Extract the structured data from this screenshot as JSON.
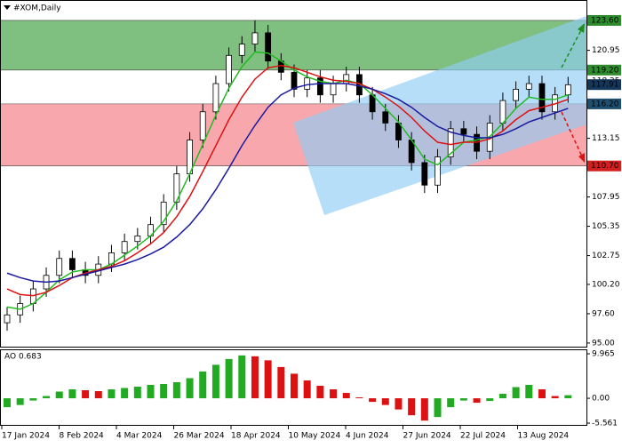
{
  "chart_data": {
    "type": "candlestick",
    "title": "#XOM,Daily",
    "xlabels": [
      "17 Jan 2024",
      "8 Feb 2024",
      "4 Mar 2024",
      "26 Mar 2024",
      "18 Apr 2024",
      "10 May 2024",
      "4 Jun 2024",
      "27 Jun 2024",
      "22 Jul 2024",
      "13 Aug 2024"
    ],
    "open": [
      96.8,
      97.5,
      98.5,
      99.8,
      101.0,
      102.5,
      101.5,
      101.0,
      102.0,
      103.0,
      104.0,
      104.5,
      105.5,
      107.5,
      110.0,
      113.0,
      115.5,
      118.0,
      120.5,
      121.5,
      122.5,
      120.0,
      119.0,
      117.5,
      118.5,
      117.0,
      118.0,
      118.8,
      117.0,
      115.5,
      114.5,
      113.0,
      111.0,
      109.0,
      111.5,
      114.0,
      113.5,
      112.0,
      114.5,
      116.5,
      117.5,
      118.0,
      115.5,
      117.0
    ],
    "high": [
      98.2,
      99.2,
      100.5,
      101.7,
      103.2,
      103.2,
      102.2,
      102.7,
      103.7,
      104.7,
      105.2,
      106.2,
      108.2,
      110.7,
      113.7,
      116.2,
      118.7,
      121.2,
      122.2,
      123.6,
      123.2,
      120.7,
      119.7,
      119.2,
      119.2,
      118.7,
      119.5,
      119.5,
      117.7,
      116.2,
      115.2,
      113.7,
      111.7,
      112.2,
      114.7,
      114.7,
      114.2,
      115.2,
      117.2,
      118.2,
      118.7,
      118.7,
      117.7,
      118.6
    ],
    "low": [
      96.1,
      96.8,
      97.8,
      99.1,
      100.3,
      100.8,
      100.3,
      100.3,
      101.3,
      102.3,
      103.3,
      103.8,
      104.8,
      106.8,
      109.3,
      112.3,
      114.8,
      117.3,
      119.8,
      120.8,
      119.3,
      118.3,
      116.8,
      116.8,
      116.3,
      116.3,
      117.3,
      116.3,
      114.8,
      113.8,
      112.3,
      110.3,
      108.3,
      108.3,
      110.8,
      112.8,
      111.3,
      111.3,
      113.8,
      115.8,
      116.8,
      114.8,
      114.8,
      116.3
    ],
    "close": [
      97.5,
      98.5,
      99.8,
      101.0,
      102.5,
      101.5,
      101.0,
      102.0,
      103.0,
      104.0,
      104.5,
      105.5,
      107.5,
      110.0,
      113.0,
      115.5,
      118.0,
      120.5,
      121.5,
      122.5,
      120.0,
      119.0,
      117.5,
      118.5,
      117.0,
      118.0,
      118.8,
      117.0,
      115.5,
      114.5,
      113.0,
      111.0,
      109.0,
      111.5,
      114.0,
      113.5,
      112.0,
      114.5,
      116.5,
      117.5,
      118.0,
      115.5,
      117.0,
      117.9
    ],
    "series": [
      {
        "color": "#22bb22",
        "values": [
          98.2,
          98.0,
          98.5,
          99.5,
          100.6,
          101.3,
          101.5,
          101.5,
          102.0,
          102.8,
          103.6,
          104.5,
          105.8,
          107.6,
          110.0,
          112.6,
          115.2,
          117.6,
          119.5,
          120.8,
          120.7,
          120.0,
          119.2,
          118.6,
          118.2,
          118.0,
          118.3,
          118.0,
          117.0,
          115.8,
          114.6,
          113.0,
          111.3,
          110.8,
          111.8,
          112.8,
          113.0,
          113.3,
          114.5,
          115.8,
          116.8,
          116.6,
          116.6,
          117.0
        ]
      },
      {
        "color": "#dd1111",
        "values": [
          99.8,
          99.3,
          99.2,
          99.5,
          100.1,
          100.8,
          101.2,
          101.5,
          101.8,
          102.3,
          103.0,
          103.8,
          104.8,
          106.2,
          108.0,
          110.2,
          112.5,
          114.8,
          116.8,
          118.4,
          119.4,
          119.6,
          119.4,
          119.0,
          118.6,
          118.3,
          118.2,
          118.0,
          117.5,
          116.8,
          116.0,
          115.0,
          113.8,
          112.8,
          112.6,
          112.8,
          112.8,
          113.1,
          113.8,
          114.8,
          115.6,
          115.9,
          116.2,
          116.6
        ]
      },
      {
        "color": "#1a1aa0",
        "values": [
          101.2,
          100.8,
          100.5,
          100.4,
          100.5,
          100.8,
          101.1,
          101.4,
          101.7,
          102.0,
          102.4,
          102.9,
          103.5,
          104.4,
          105.5,
          106.9,
          108.6,
          110.5,
          112.5,
          114.3,
          115.9,
          117.0,
          117.6,
          117.9,
          118.0,
          118.0,
          118.0,
          117.8,
          117.5,
          117.1,
          116.6,
          115.9,
          115.0,
          114.2,
          113.7,
          113.4,
          113.2,
          113.2,
          113.5,
          114.0,
          114.6,
          115.0,
          115.4,
          115.8
        ]
      }
    ],
    "ylim": [
      94.68,
      125.41
    ],
    "yticks": [
      120.95,
      118.25,
      113.15,
      107.95,
      105.35,
      102.75,
      {
        "value": 100.2,
        "label": "100.20"
      },
      {
        "value": 97.6,
        "label": "97.60"
      },
      {
        "value": 95,
        "label": "95.00"
      }
    ],
    "zones": [
      {
        "from": 123.6,
        "to": 119.2,
        "color": "#7fbf7f"
      },
      {
        "from": 116.2,
        "to": 110.7,
        "color": "#f8a8ac"
      }
    ],
    "levels": [
      {
        "value": 123.6,
        "label": "123.60",
        "color": "#2e8b2e"
      },
      {
        "value": 119.2,
        "label": "119.20",
        "color": "#2e8b2e"
      },
      {
        "value": 117.91,
        "label": "117.91",
        "color": "#14365a"
      },
      {
        "value": 116.2,
        "label": "116.20",
        "color": "#1f4e6e"
      },
      {
        "value": 110.7,
        "label": "110.70",
        "color": "#d22020"
      }
    ],
    "ao_title": "AO 0.683",
    "ao": [
      -2.0,
      -1.5,
      -0.5,
      0.5,
      1.5,
      2.0,
      1.8,
      1.6,
      2.0,
      2.3,
      2.6,
      3.0,
      3.2,
      3.6,
      4.5,
      6.0,
      7.5,
      8.8,
      9.6,
      9.4,
      8.5,
      7.0,
      5.5,
      4.0,
      2.8,
      2.0,
      1.2,
      0.2,
      -0.8,
      -1.5,
      -2.5,
      -3.8,
      -5.0,
      -4.2,
      -2.0,
      -0.5,
      -1.0,
      -0.6,
      1.0,
      2.5,
      3.0,
      2.0,
      0.5,
      0.683
    ],
    "ao_ylim": [
      -5.561,
      9.965
    ],
    "ao_yticks": [
      {
        "value": 9.965,
        "label": "9.965"
      },
      {
        "value": 0,
        "label": "0.00"
      },
      {
        "value": -5.561,
        "label": "-5.561"
      }
    ]
  }
}
